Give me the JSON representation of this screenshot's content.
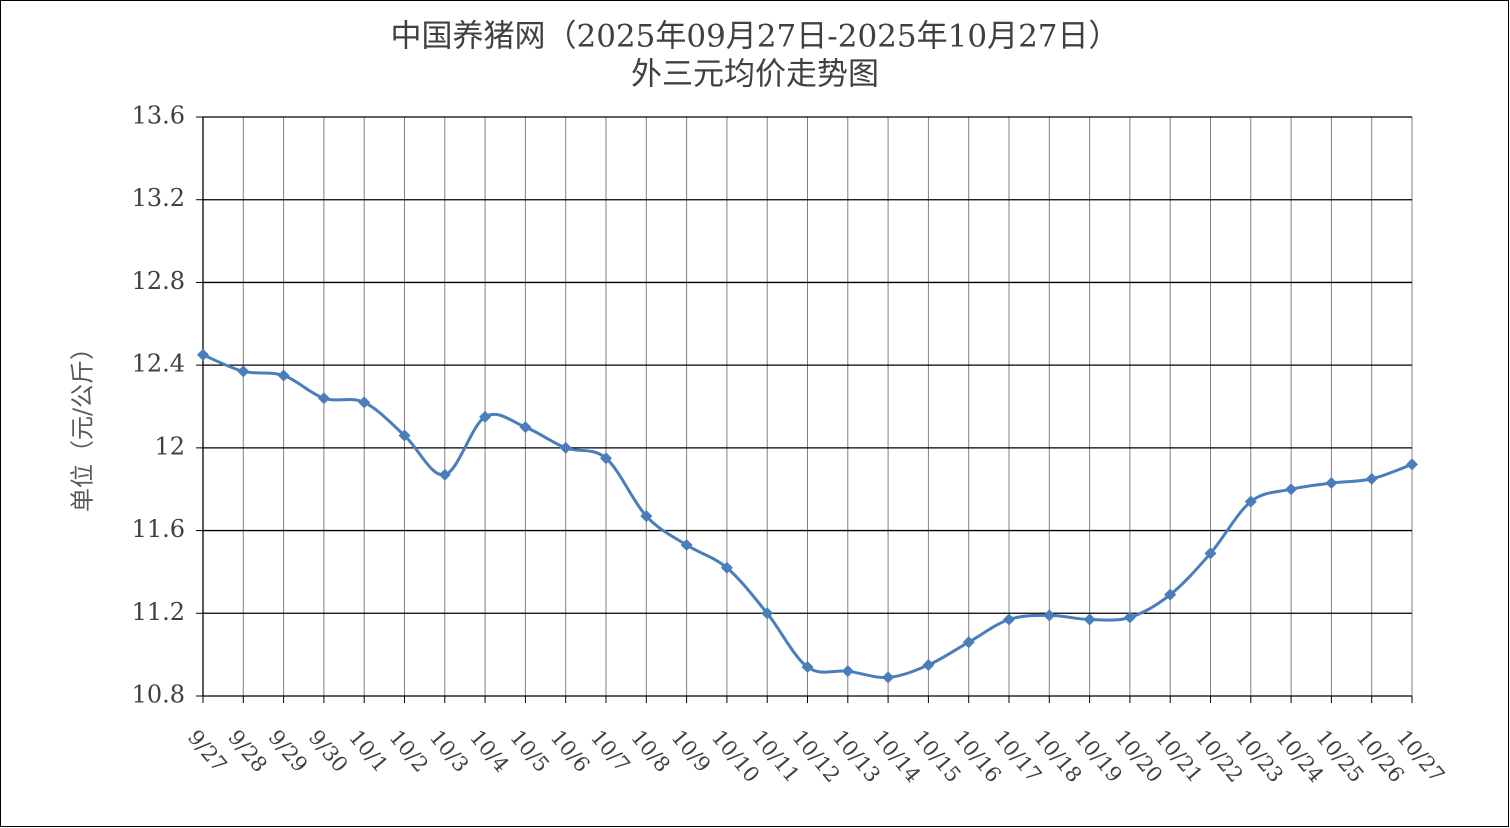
{
  "chart_data": {
    "type": "line",
    "title": "中国养猪网（2025年09月27日-2025年10月27日）",
    "subtitle": "外三元均价走势图",
    "y_label": "单位（元/公斤）",
    "categories": [
      "9/27",
      "9/28",
      "9/29",
      "9/30",
      "10/1",
      "10/2",
      "10/3",
      "10/4",
      "10/5",
      "10/6",
      "10/7",
      "10/8",
      "10/9",
      "10/10",
      "10/11",
      "10/12",
      "10/13",
      "10/14",
      "10/15",
      "10/16",
      "10/17",
      "10/18",
      "10/19",
      "10/20",
      "10/21",
      "10/22",
      "10/23",
      "10/24",
      "10/25",
      "10/26",
      "10/27"
    ],
    "series": [
      {
        "name": "外三元均价",
        "color": "#4a7ebb",
        "values": [
          12.45,
          12.37,
          12.35,
          12.24,
          12.22,
          12.06,
          11.87,
          12.15,
          12.1,
          12.0,
          11.95,
          11.67,
          11.53,
          11.42,
          11.2,
          10.94,
          10.92,
          10.89,
          10.95,
          11.06,
          11.17,
          11.19,
          11.17,
          11.18,
          11.29,
          11.49,
          11.74,
          11.8,
          11.83,
          11.85,
          11.92
        ]
      }
    ],
    "ylim": [
      10.8,
      13.6
    ],
    "yticks": [
      10.8,
      11.2,
      11.6,
      12,
      12.4,
      12.8,
      13.2,
      13.6
    ],
    "grid": true
  }
}
